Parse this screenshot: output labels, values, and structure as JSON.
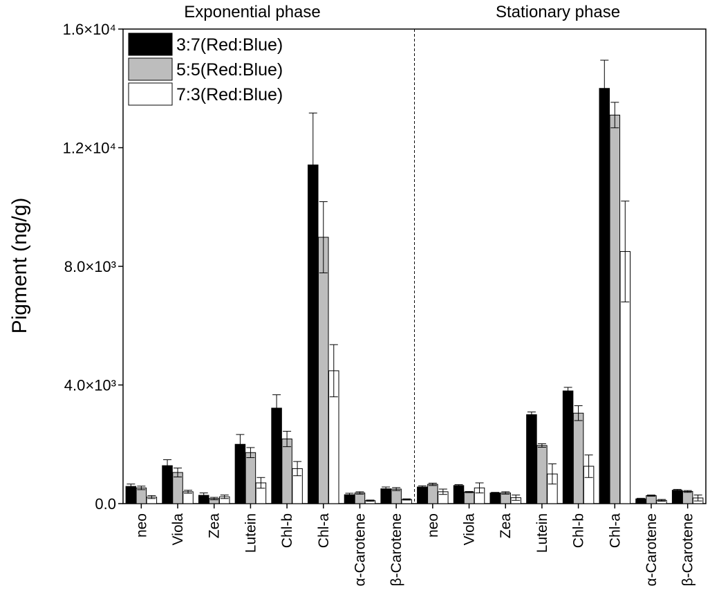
{
  "chart_data": {
    "type": "bar",
    "ylabel": "Pigment (ng/g)",
    "ylim": [
      0,
      16000
    ],
    "yticks": [
      {
        "value": 0,
        "label": "0.0"
      },
      {
        "value": 4000,
        "label": "4.0×10³"
      },
      {
        "value": 8000,
        "label": "8.0×10³"
      },
      {
        "value": 12000,
        "label": "1.2×10⁴"
      },
      {
        "value": 16000,
        "label": "1.6×10⁴"
      }
    ],
    "legend_position": "top-left",
    "grid": false,
    "panels": [
      {
        "title": "Exponential phase",
        "categories": [
          "neo",
          "Viola",
          "Zea",
          "Lutein",
          "Chl-b",
          "Chl-a",
          "α-Carotene",
          "β-Carotene"
        ],
        "series": [
          {
            "name": "3:7(Red:Blue)",
            "color": "#000000",
            "values": [
              580,
              1280,
              280,
              2000,
              3220,
              11420,
              300,
              500
            ],
            "errors": [
              80,
              200,
              80,
              330,
              450,
              1750,
              50,
              60
            ]
          },
          {
            "name": "5:5(Red:Blue)",
            "color": "#bdbdbd",
            "values": [
              530,
              1050,
              170,
              1720,
              2180,
              8980,
              360,
              490
            ],
            "errors": [
              60,
              150,
              40,
              170,
              260,
              1200,
              40,
              50
            ]
          },
          {
            "name": "7:3(Red:Blue)",
            "color": "#ffffff",
            "values": [
              220,
              400,
              230,
              700,
              1180,
              4480,
              100,
              140
            ],
            "errors": [
              50,
              50,
              60,
              180,
              240,
              880,
              20,
              20
            ]
          }
        ]
      },
      {
        "title": "Stationary phase",
        "categories": [
          "neo",
          "Viola",
          "Zea",
          "Lutein",
          "Chl-b",
          "Chl-a",
          "α-Carotene",
          "β-Carotene"
        ],
        "series": [
          {
            "name": "3:7(Red:Blue)",
            "color": "#000000",
            "values": [
              560,
              610,
              360,
              3000,
              3800,
              14000,
              160,
              450
            ],
            "errors": [
              40,
              30,
              20,
              90,
              120,
              950,
              20,
              30
            ]
          },
          {
            "name": "5:5(Red:Blue)",
            "color": "#bdbdbd",
            "values": [
              650,
              390,
              360,
              1960,
              3050,
              13100,
              270,
              410
            ],
            "errors": [
              40,
              20,
              40,
              60,
              250,
              430,
              20,
              30
            ]
          },
          {
            "name": "7:3(Red:Blue)",
            "color": "#ffffff",
            "values": [
              400,
              530,
              200,
              1000,
              1260,
              8500,
              110,
              190
            ],
            "errors": [
              90,
              170,
              90,
              340,
              380,
              1700,
              30,
              100
            ]
          }
        ]
      }
    ]
  }
}
